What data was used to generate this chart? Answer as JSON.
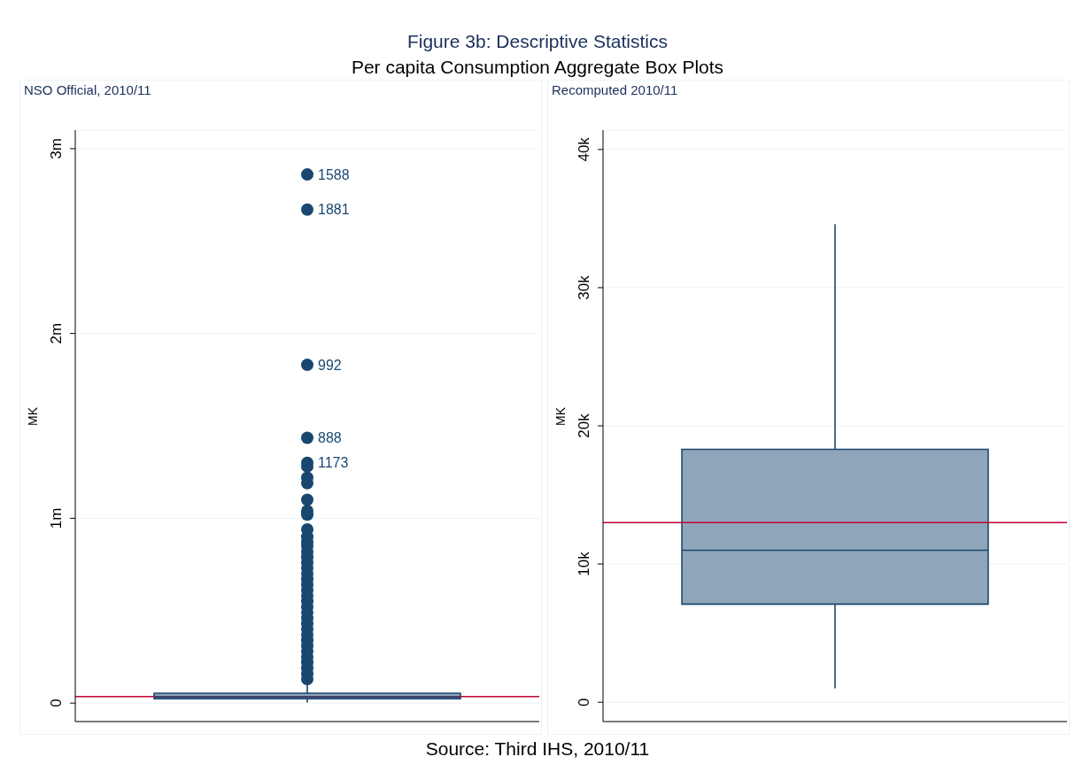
{
  "chart_data": [
    {
      "type": "box",
      "title": "NSO Official, 2010/11",
      "ylabel": "MK",
      "categories": [
        null
      ],
      "boxes": [
        {
          "low": 3000,
          "q1": 24000,
          "median": 34000,
          "q3": 53000,
          "high": 115000,
          "outliers": [
            2860000,
            2670000,
            1830000,
            1435000,
            1300000,
            1280000,
            1220000,
            1190000,
            1100000,
            1040000,
            1020000,
            940000,
            900000,
            870000,
            850000,
            820000,
            790000,
            760000,
            730000,
            700000,
            670000,
            640000,
            610000,
            580000,
            550000,
            520000,
            490000,
            460000,
            430000,
            400000,
            370000,
            340000,
            310000,
            280000,
            250000,
            220000,
            190000,
            160000,
            130000
          ]
        }
      ],
      "color": "#8fa5b9",
      "ylim": [
        -100000,
        3100000
      ],
      "yticks": [
        0,
        {
          "value": 1000000,
          "label": "1m"
        },
        {
          "value": 2000000,
          "label": "2m"
        },
        {
          "value": 3000000,
          "label": "3m"
        }
      ],
      "grid": "y",
      "legend": false,
      "ref_lines": [
        {
          "axis": "y",
          "value": 35000,
          "color": "#c10534"
        }
      ],
      "annotations": [
        "Figure 3b: Descriptive Statistics",
        "Per capita Consumption Aggregate Box Plots",
        "Source: Third IHS, 2010/11",
        "1588",
        "1881",
        "992",
        "888",
        "1173"
      ]
    },
    {
      "type": "box",
      "title": "Recomputed 2010/11",
      "ylabel": "MK",
      "categories": [
        null
      ],
      "boxes": [
        {
          "low": 1000,
          "q1": 7100,
          "median": 11000,
          "q3": 18300,
          "high": 34600
        }
      ],
      "color": "#8fa5b9",
      "ylim": [
        -1400,
        41400
      ],
      "yticks": [
        0,
        {
          "value": 10000,
          "label": "10k"
        },
        {
          "value": 20000,
          "label": "20k"
        },
        {
          "value": 30000,
          "label": "30k"
        },
        {
          "value": 40000,
          "label": "40k"
        }
      ],
      "grid": "y",
      "legend": false,
      "ref_lines": [
        {
          "axis": "y",
          "value": 13000,
          "color": "#c10534"
        }
      ]
    }
  ]
}
